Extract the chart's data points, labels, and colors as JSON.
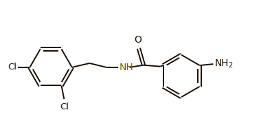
{
  "bg_color": "#ffffff",
  "bond_color": "#1a0d00",
  "label_color": "#1a0d00",
  "n_color": "#7a5c00",
  "nh2_color": "#1a0d00",
  "o_color": "#1a0d00",
  "line_width": 1.4,
  "font_size": 9.5,
  "fig_w": 3.96,
  "fig_h": 1.89,
  "dpi": 100,
  "xlim": [
    0,
    10
  ],
  "ylim": [
    0,
    4.77
  ]
}
